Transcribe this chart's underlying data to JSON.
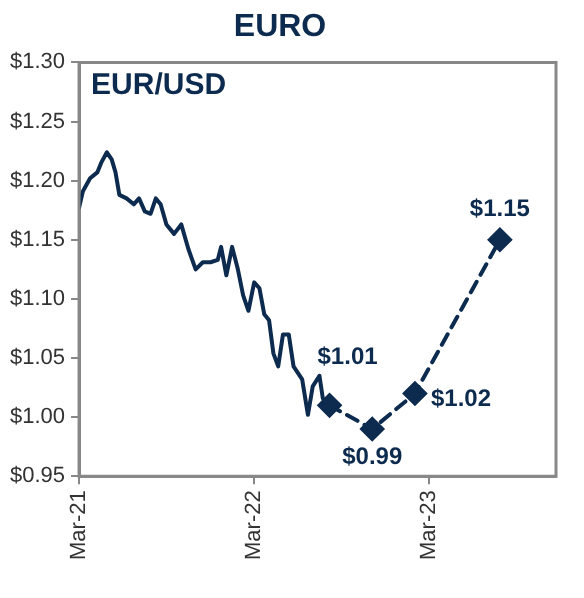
{
  "chart_data": {
    "type": "line",
    "title": "EURO",
    "subtitle": "EUR/USD",
    "series": [
      {
        "color": "#0d2b4e",
        "line_style": "solid",
        "marker": "none",
        "x": [
          "2021-03-01",
          "2021-03-09",
          "2021-03-24",
          "2021-04-08",
          "2021-04-16",
          "2021-04-28",
          "2021-05-08",
          "2021-05-16",
          "2021-05-24",
          "2021-06-08",
          "2021-06-23",
          "2021-07-04",
          "2021-07-16",
          "2021-07-28",
          "2021-08-08",
          "2021-08-18",
          "2021-08-30",
          "2021-09-15",
          "2021-09-30",
          "2021-10-15",
          "2021-10-30",
          "2021-11-14",
          "2021-11-30",
          "2021-12-15",
          "2021-12-22",
          "2022-01-02",
          "2022-01-14",
          "2022-01-26",
          "2022-02-06",
          "2022-02-17",
          "2022-03-01",
          "2022-03-12",
          "2022-03-22",
          "2022-04-01",
          "2022-04-10",
          "2022-04-20",
          "2022-04-30",
          "2022-05-12",
          "2022-05-22",
          "2022-06-09",
          "2022-06-21",
          "2022-07-01",
          "2022-07-15",
          "2022-07-22",
          "2022-08-05"
        ],
        "values": [
          1.177,
          1.191,
          1.202,
          1.207,
          1.215,
          1.224,
          1.218,
          1.207,
          1.188,
          1.185,
          1.18,
          1.185,
          1.174,
          1.172,
          1.185,
          1.18,
          1.163,
          1.155,
          1.163,
          1.142,
          1.125,
          1.131,
          1.131,
          1.133,
          1.144,
          1.12,
          1.144,
          1.125,
          1.103,
          1.09,
          1.114,
          1.109,
          1.087,
          1.082,
          1.054,
          1.043,
          1.07,
          1.07,
          1.043,
          1.032,
          1.002,
          1.026,
          1.035,
          1.016,
          1.01
        ]
      },
      {
        "color": "#0d2b4e",
        "line_style": "dashed",
        "marker": "diamond",
        "x": [
          "2022-08-05",
          "2022-11-02",
          "2023-01-30",
          "2023-07-26"
        ],
        "values": [
          1.01,
          0.99,
          1.02,
          1.15
        ],
        "value_labels": [
          "$1.01",
          "$0.99",
          "$1.02",
          "$1.15"
        ]
      }
    ],
    "xlim": [
      "2021-03-01",
      "2023-11-20"
    ],
    "xticks": [
      {
        "value": "2021-03-01",
        "label": "Mar-21"
      },
      {
        "value": "2022-03-01",
        "label": "Mar-22"
      },
      {
        "value": "2023-03-01",
        "label": "Mar-23"
      }
    ],
    "ylim": [
      0.95,
      1.3
    ],
    "yticks": [
      {
        "value": 0.95,
        "label": "$0.95"
      },
      {
        "value": 1.0,
        "label": "$1.00"
      },
      {
        "value": 1.05,
        "label": "$1.05"
      },
      {
        "value": 1.1,
        "label": "$1.10"
      },
      {
        "value": 1.15,
        "label": "$1.15"
      },
      {
        "value": 1.2,
        "label": "$1.20"
      },
      {
        "value": 1.25,
        "label": "$1.25"
      },
      {
        "value": 1.3,
        "label": "$1.30"
      }
    ],
    "grid": false,
    "legend": false
  }
}
